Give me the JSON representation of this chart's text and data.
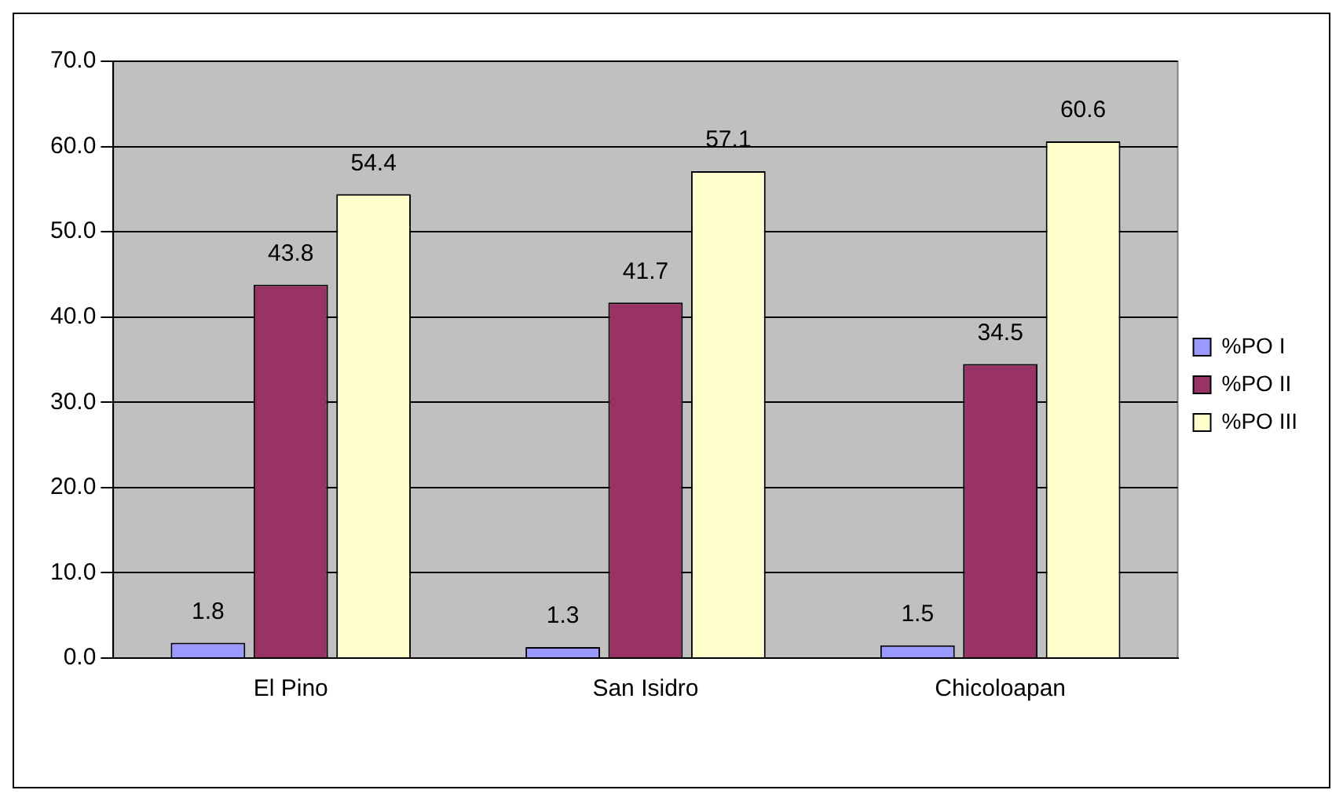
{
  "chart_data": {
    "type": "bar",
    "categories": [
      "El Pino",
      "San Isidro",
      "Chicoloapan"
    ],
    "series": [
      {
        "name": "%PO I",
        "color": "#9999ff",
        "values": [
          1.8,
          1.3,
          1.5
        ]
      },
      {
        "name": "%PO II",
        "color": "#993366",
        "values": [
          43.8,
          41.7,
          34.5
        ]
      },
      {
        "name": "%PO III",
        "color": "#ffffcc",
        "values": [
          54.4,
          57.1,
          60.6
        ]
      }
    ],
    "ylim": [
      0,
      70
    ],
    "yticks": [
      {
        "value": 0,
        "label": "0.0"
      },
      {
        "value": 10,
        "label": "10.0"
      },
      {
        "value": 20,
        "label": "20.0"
      },
      {
        "value": 30,
        "label": "30.0"
      },
      {
        "value": 40,
        "label": "40.0"
      },
      {
        "value": 50,
        "label": "50.0"
      },
      {
        "value": 60,
        "label": "60.0"
      },
      {
        "value": 70,
        "label": "70.0"
      }
    ],
    "grid": "y",
    "legend": "right",
    "data_labels": true
  }
}
